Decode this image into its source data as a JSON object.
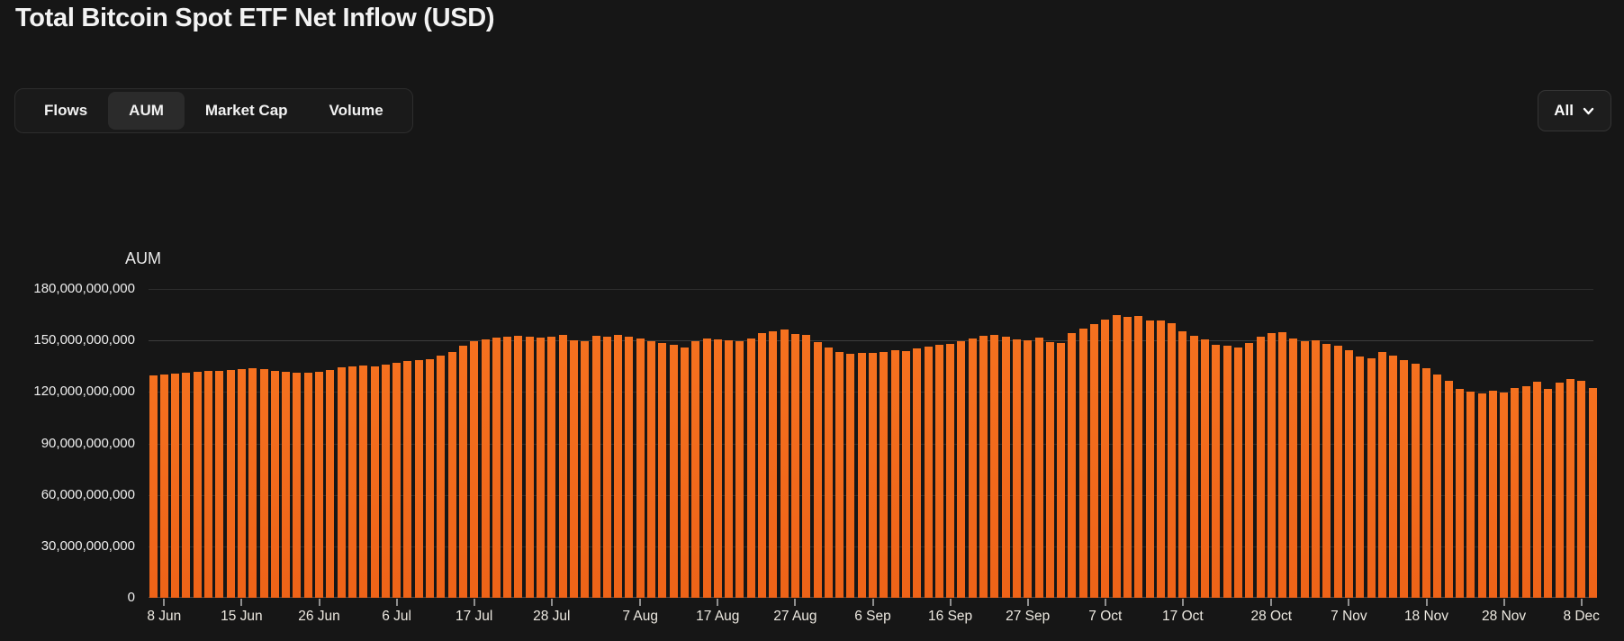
{
  "header": {
    "title": "Total Bitcoin Spot ETF Net Inflow (USD)"
  },
  "toolbar": {
    "tabs": [
      {
        "label": "Flows",
        "active": false
      },
      {
        "label": "AUM",
        "active": true
      },
      {
        "label": "Market Cap",
        "active": false
      },
      {
        "label": "Volume",
        "active": false
      }
    ],
    "range_dropdown": {
      "value": "All",
      "icon": "chevron-down-icon"
    }
  },
  "chart_data": {
    "type": "bar",
    "axis_title": "AUM",
    "unit": "USD",
    "bar_color_top": "#f5711f",
    "bar_color_bottom": "#ee6318",
    "grid_color": "#2d2d2d",
    "background_color": "#161616",
    "ylim": [
      0,
      180000000000
    ],
    "grid": true,
    "legend_position": "none",
    "y_ticks": [
      {
        "value": 180000000000,
        "label": "180,000,000,000"
      },
      {
        "value": 150000000000,
        "label": "150,000,000,000"
      },
      {
        "value": 120000000000,
        "label": "120,000,000,000"
      },
      {
        "value": 90000000000,
        "label": "90,000,000,000"
      },
      {
        "value": 60000000000,
        "label": "60,000,000,000"
      },
      {
        "value": 30000000000,
        "label": "30,000,000,000"
      },
      {
        "value": 0,
        "label": "0"
      }
    ],
    "x_ticks": [
      {
        "label": "8 Jun",
        "bar_index": 1
      },
      {
        "label": "15 Jun",
        "bar_index": 8
      },
      {
        "label": "26 Jun",
        "bar_index": 15
      },
      {
        "label": "6 Jul",
        "bar_index": 22
      },
      {
        "label": "17 Jul",
        "bar_index": 29
      },
      {
        "label": "28 Jul",
        "bar_index": 36
      },
      {
        "label": "7 Aug",
        "bar_index": 44
      },
      {
        "label": "17 Aug",
        "bar_index": 51
      },
      {
        "label": "27 Aug",
        "bar_index": 58
      },
      {
        "label": "6 Sep",
        "bar_index": 65
      },
      {
        "label": "16 Sep",
        "bar_index": 72
      },
      {
        "label": "27 Sep",
        "bar_index": 79
      },
      {
        "label": "7 Oct",
        "bar_index": 86
      },
      {
        "label": "17 Oct",
        "bar_index": 93
      },
      {
        "label": "28 Oct",
        "bar_index": 101
      },
      {
        "label": "7 Nov",
        "bar_index": 108
      },
      {
        "label": "18 Nov",
        "bar_index": 115
      },
      {
        "label": "28 Nov",
        "bar_index": 122
      },
      {
        "label": "8 Dec",
        "bar_index": 129
      }
    ],
    "values_usd_billions": [
      129.5,
      130,
      130.5,
      131,
      131.5,
      132,
      132.5,
      133,
      133.5,
      133.8,
      133.2,
      132.5,
      131.8,
      131.2,
      131,
      131.8,
      133,
      134.2,
      135,
      135.2,
      135,
      136,
      137,
      138,
      138.5,
      139,
      141,
      143.5,
      147,
      149.5,
      150.5,
      151.5,
      152,
      152.5,
      152,
      151.5,
      152,
      153,
      150,
      149.5,
      152.5,
      152,
      153,
      152,
      151,
      149.5,
      148.5,
      147.5,
      146,
      149.5,
      151,
      150.5,
      150,
      149.5,
      151,
      154.5,
      155.5,
      156.3,
      153.8,
      153,
      149,
      146,
      143.5,
      142,
      142.5,
      143,
      143.5,
      144.5,
      144,
      145.5,
      146.5,
      147.5,
      148,
      149.5,
      151,
      152.5,
      153,
      152,
      150.5,
      150,
      151.5,
      149,
      148.5,
      154.5,
      157,
      159.5,
      162,
      165,
      163.5,
      164.5,
      161.5,
      161.5,
      160,
      155.5,
      152.5,
      150.5,
      147.5,
      147,
      146,
      148.5,
      152,
      154.5,
      155,
      151,
      149.5,
      150,
      148,
      147,
      144.5,
      140.5,
      139.8,
      143.3,
      141,
      138.5,
      136.3,
      134,
      130,
      126.5,
      121.5,
      120,
      119,
      120.5,
      119.5,
      122.3,
      123.2,
      125.8,
      121.5,
      125.5,
      127.5,
      126.7,
      122.5
    ]
  }
}
